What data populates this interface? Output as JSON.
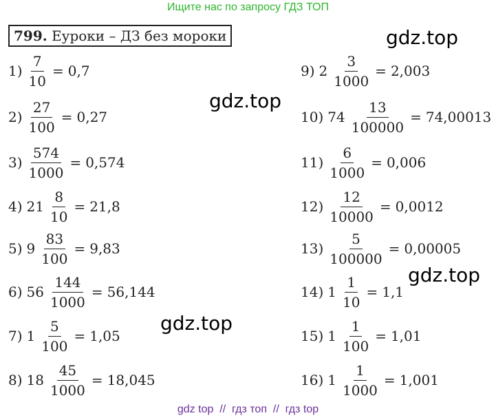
{
  "banner": "Ищите нас по запросу ГДЗ ТОП",
  "problem": {
    "number": "799.",
    "title": "Еуроки – ДЗ без мороки"
  },
  "equals_sign": "=",
  "items": [
    {
      "label": "1)",
      "numerator": "7",
      "denominator": "10",
      "result": "0,7"
    },
    {
      "label": "2)",
      "numerator": "27",
      "denominator": "100",
      "result": "0,27"
    },
    {
      "label": "3)",
      "numerator": "574",
      "denominator": "1000",
      "result": "0,574"
    },
    {
      "label": "4)",
      "whole": "21",
      "numerator": "8",
      "denominator": "10",
      "result": "21,8"
    },
    {
      "label": "5)",
      "whole": "9",
      "numerator": "83",
      "denominator": "100",
      "result": "9,83"
    },
    {
      "label": "6)",
      "whole": "56",
      "numerator": "144",
      "denominator": "1000",
      "result": "56,144"
    },
    {
      "label": "7)",
      "whole": "1",
      "numerator": "5",
      "denominator": "100",
      "result": "1,05"
    },
    {
      "label": "8)",
      "whole": "18",
      "numerator": "45",
      "denominator": "1000",
      "result": "18,045"
    },
    {
      "label": "9)",
      "whole": "2",
      "numerator": "3",
      "denominator": "1000",
      "result": "2,003"
    },
    {
      "label": "10)",
      "whole": "74",
      "numerator": "13",
      "denominator": "100000",
      "result": "74,00013"
    },
    {
      "label": "11)",
      "numerator": "6",
      "denominator": "1000",
      "result": "0,006"
    },
    {
      "label": "12)",
      "numerator": "12",
      "denominator": "10000",
      "result": "0,0012"
    },
    {
      "label": "13)",
      "numerator": "5",
      "denominator": "100000",
      "result": "0,00005"
    },
    {
      "label": "14)",
      "whole": "1",
      "numerator": "1",
      "denominator": "10",
      "result": "1,1"
    },
    {
      "label": "15)",
      "whole": "1",
      "numerator": "1",
      "denominator": "100",
      "result": "1,01"
    },
    {
      "label": "16)",
      "whole": "1",
      "numerator": "1",
      "denominator": "1000",
      "result": "1,001"
    }
  ],
  "watermarks": [
    "gdz.top",
    "gdz.top",
    "gdz.top",
    "gdz.top"
  ],
  "footer": "gdz top  //  гдз топ  //  гдз top"
}
